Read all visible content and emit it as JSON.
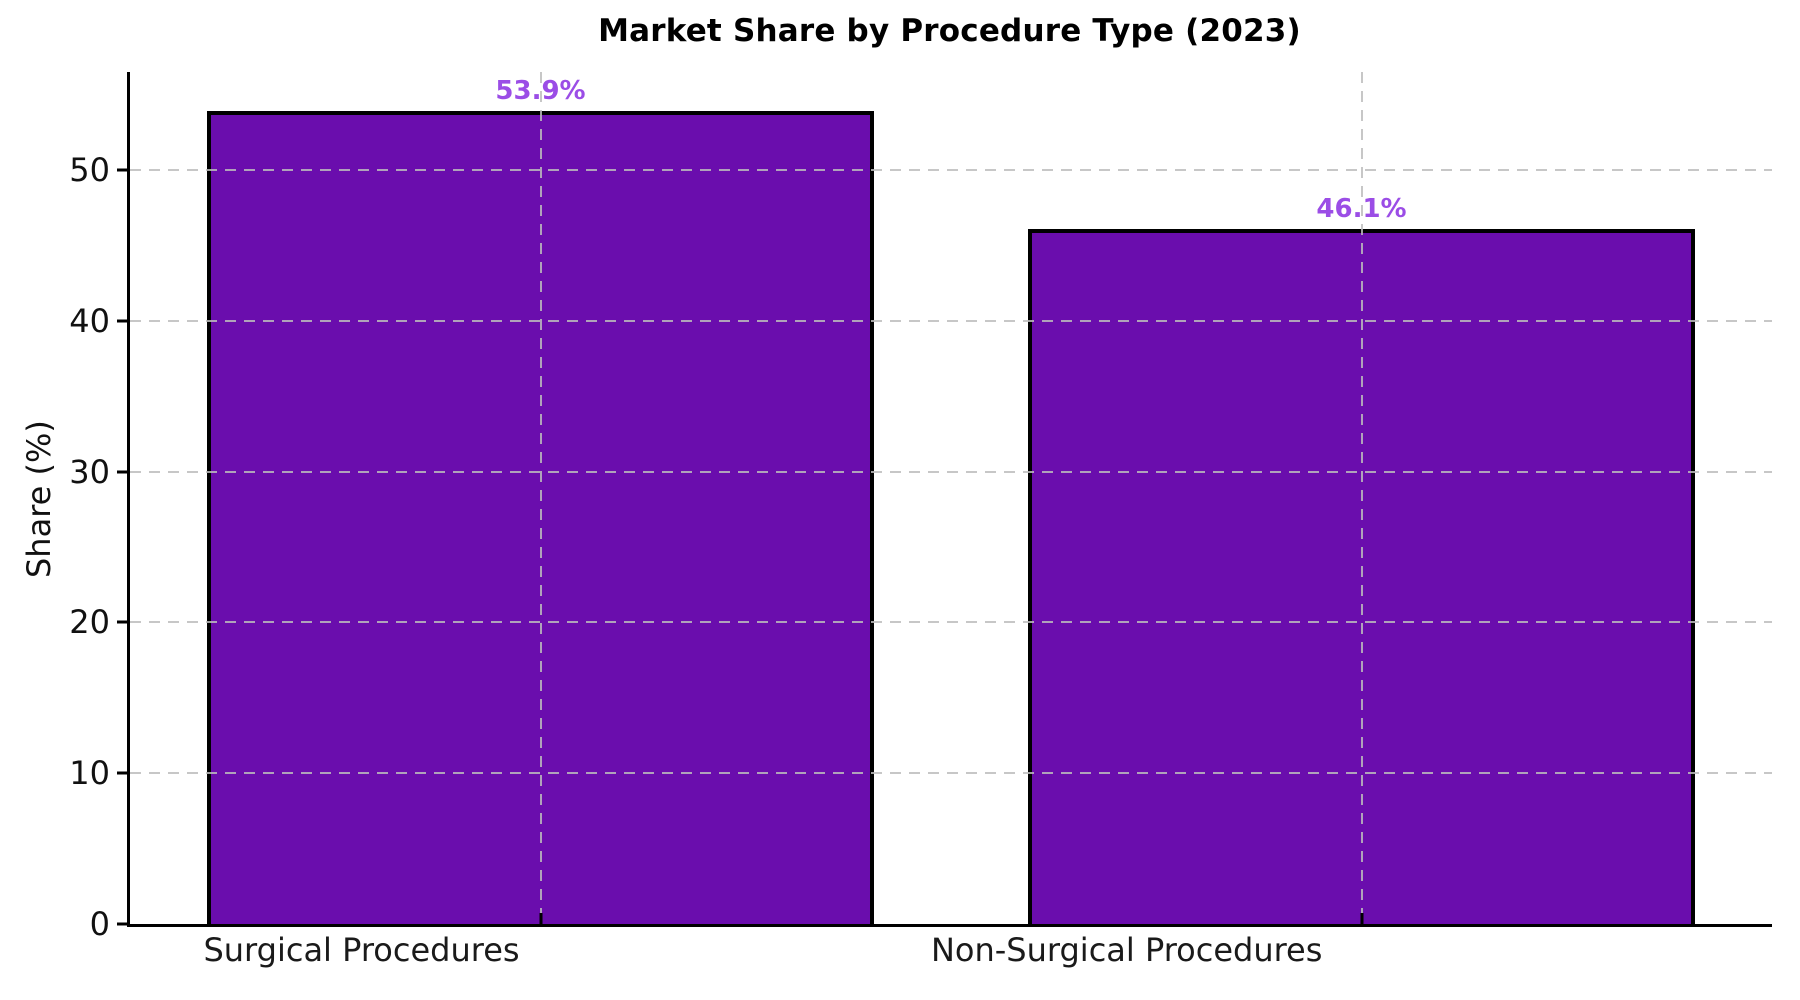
{
  "chart_data": {
    "type": "bar",
    "title": "Market Share by Procedure Type (2023)",
    "xlabel": "",
    "ylabel": "Share (%)",
    "categories": [
      "Surgical Procedures",
      "Non-Surgical Procedures"
    ],
    "values": [
      53.9,
      46.1
    ],
    "value_labels": [
      "53.9%",
      "46.1%"
    ],
    "yticks": [
      0,
      10,
      20,
      30,
      40,
      50
    ],
    "ylim": [
      0,
      56.5
    ],
    "grid": "dashed gray gridlines on both axes, drawn over bars",
    "legend": "none",
    "colors": {
      "bar_fill": "#6A0DAD",
      "bar_edge": "#000000",
      "value_label": "#9B4DE6",
      "gridline": "#bdbdbd",
      "axis": "#000000",
      "text": "#111111"
    },
    "layout": {
      "bar_centers_pct": [
        25,
        75
      ],
      "bar_width_pct": 40.6,
      "xtick_label_centers_pct": [
        14.1,
        60.7
      ]
    }
  }
}
